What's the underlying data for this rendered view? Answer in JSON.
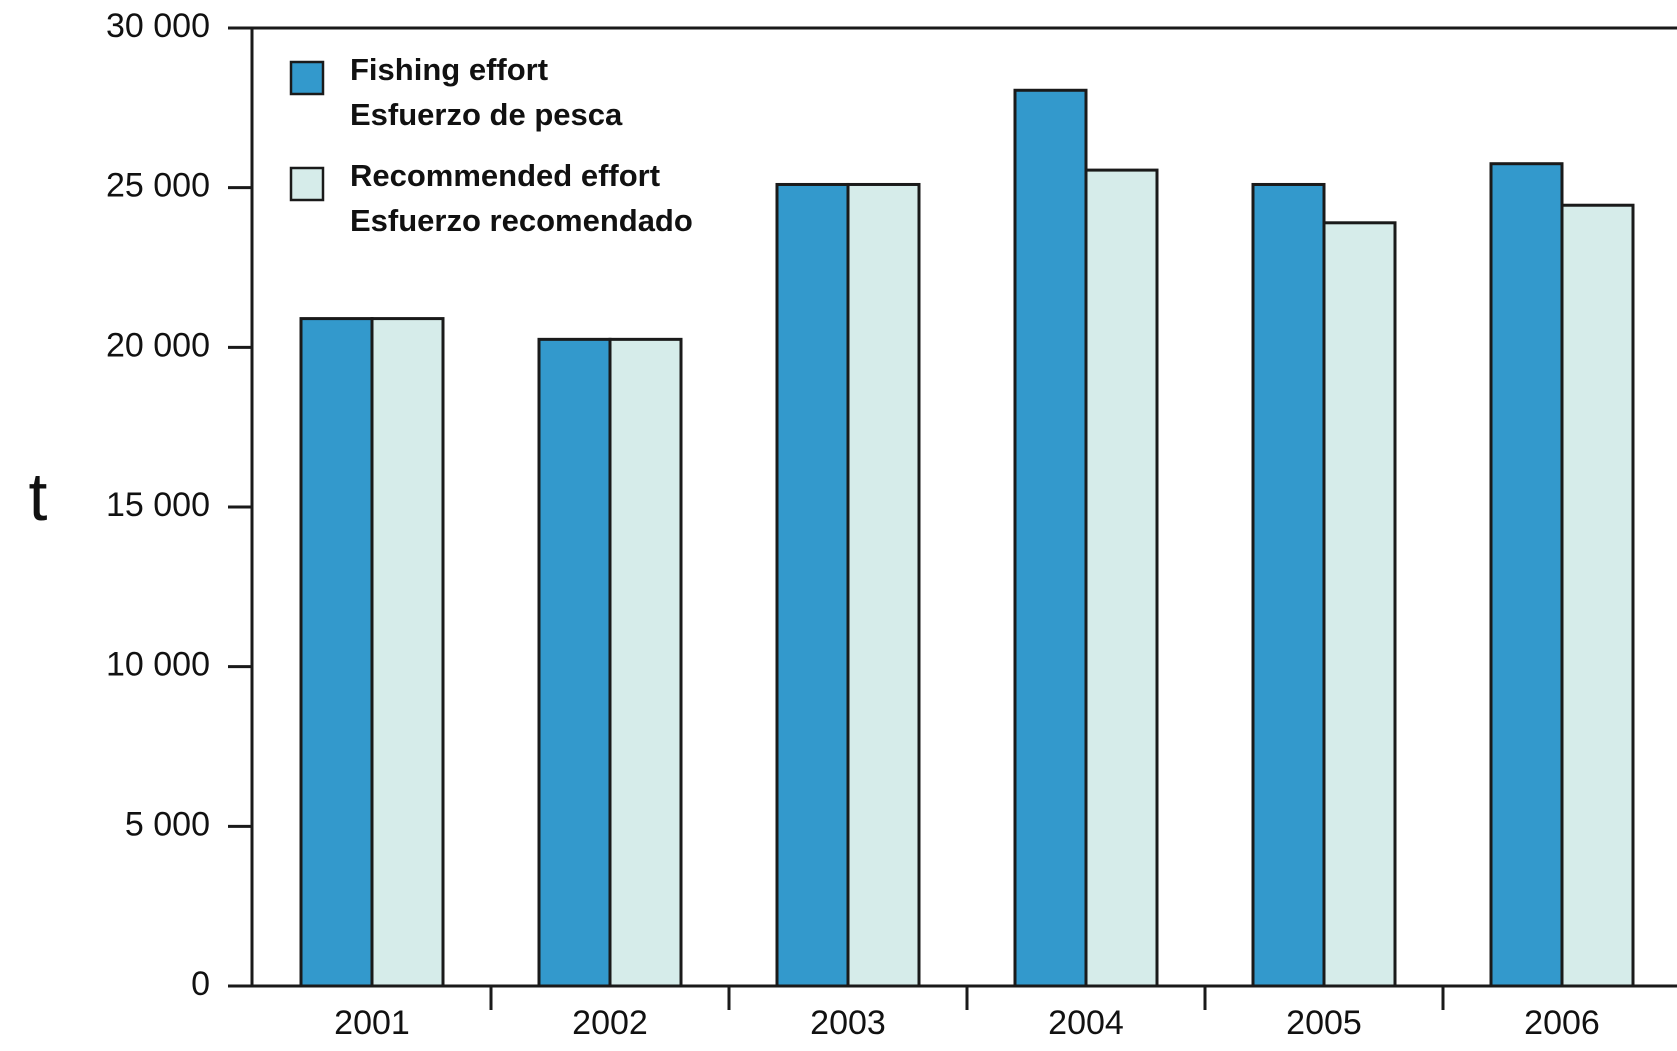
{
  "chart_data": {
    "type": "bar",
    "title": "",
    "xlabel": "",
    "ylabel": "t",
    "categories": [
      "2001",
      "2002",
      "2003",
      "2004",
      "2005",
      "2006"
    ],
    "series": [
      {
        "name": "Fishing effort\nEsfuerzo de pesca",
        "name_lines": [
          "Fishing effort",
          "Esfuerzo de pesca"
        ],
        "color": "#3399cc",
        "values": [
          20900,
          20250,
          25100,
          28050,
          25100,
          25750
        ]
      },
      {
        "name": "Recommended effort\nEsfuerzo recomendado",
        "name_lines": [
          "Recommended effort",
          "Esfuerzo recomendado"
        ],
        "color": "#d6ecea",
        "values": [
          20900,
          20250,
          25100,
          25550,
          23900,
          24450
        ]
      }
    ],
    "ylim": [
      0,
      30000
    ],
    "yticks": [
      0,
      5000,
      10000,
      15000,
      20000,
      25000,
      30000
    ],
    "ytick_labels": [
      "0",
      "5 000",
      "10 000",
      "15 000",
      "20 000",
      "25 000",
      "30 000"
    ],
    "grid": false,
    "legend_position": "top-left"
  }
}
